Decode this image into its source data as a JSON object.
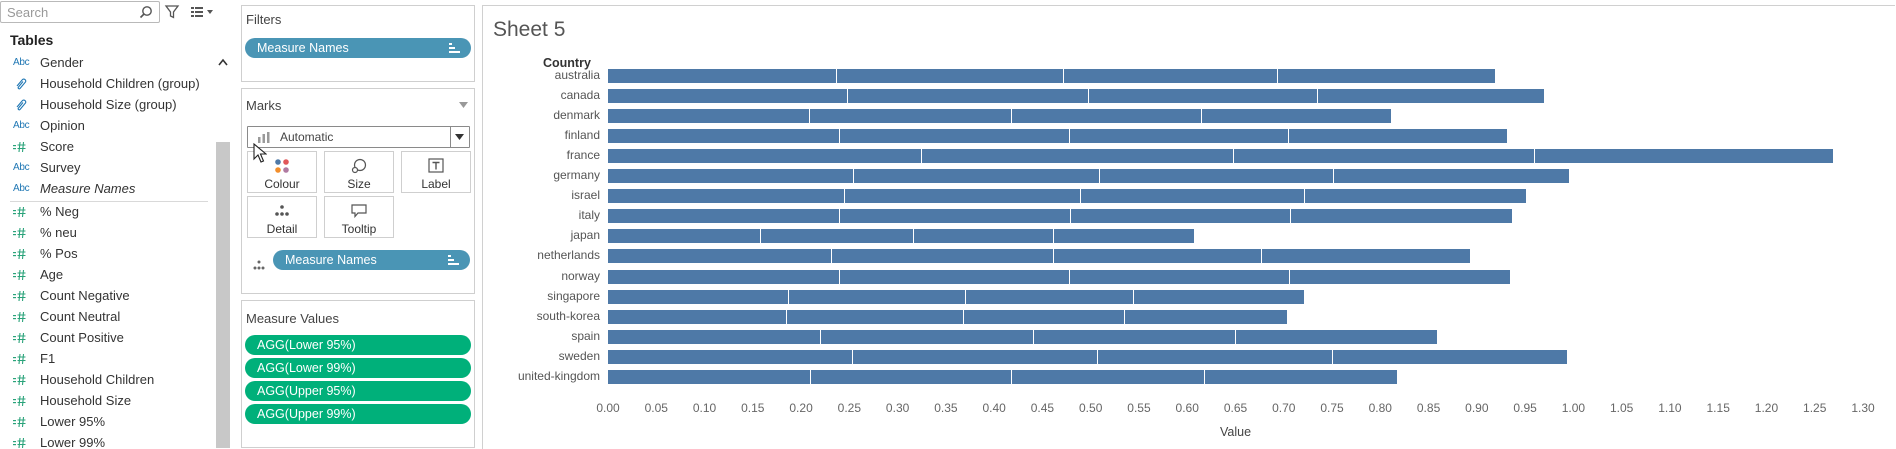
{
  "datapane": {
    "search_placeholder": "Search",
    "tables_title": "Tables",
    "fields": [
      {
        "type": "abc",
        "label": "Gender",
        "italic": false
      },
      {
        "type": "grp",
        "label": "Household Children (group)",
        "italic": false
      },
      {
        "type": "grp",
        "label": "Household Size (group)",
        "italic": false
      },
      {
        "type": "abc",
        "label": "Opinion",
        "italic": false
      },
      {
        "type": "num",
        "label": "Score",
        "italic": false
      },
      {
        "type": "abc",
        "label": "Survey",
        "italic": false
      },
      {
        "type": "abc",
        "label": "Measure Names",
        "italic": true
      },
      {
        "type": "num",
        "label": "% Neg",
        "italic": false
      },
      {
        "type": "num",
        "label": "% neu",
        "italic": false
      },
      {
        "type": "num",
        "label": "% Pos",
        "italic": false
      },
      {
        "type": "num",
        "label": "Age",
        "italic": false
      },
      {
        "type": "num",
        "label": "Count Negative",
        "italic": false
      },
      {
        "type": "num",
        "label": "Count Neutral",
        "italic": false
      },
      {
        "type": "num",
        "label": "Count Positive",
        "italic": false
      },
      {
        "type": "num",
        "label": "F1",
        "italic": false
      },
      {
        "type": "num",
        "label": "Household Children",
        "italic": false
      },
      {
        "type": "num",
        "label": "Household Size",
        "italic": false
      },
      {
        "type": "num",
        "label": "Lower 95%",
        "italic": false
      },
      {
        "type": "num",
        "label": "Lower 99%",
        "italic": false
      }
    ],
    "icon_glyphs": {
      "abc": "Abc",
      "num": "=#",
      "grp": "🔗"
    }
  },
  "filters": {
    "title": "Filters",
    "pill": "Measure Names"
  },
  "marks": {
    "title": "Marks",
    "mark_type": "Automatic",
    "buttons": [
      {
        "label": "Colour",
        "icon": "colour-icon"
      },
      {
        "label": "Size",
        "icon": "size-icon"
      },
      {
        "label": "Label",
        "icon": "label-icon"
      },
      {
        "label": "Detail",
        "icon": "detail-icon"
      },
      {
        "label": "Tooltip",
        "icon": "tooltip-icon"
      }
    ],
    "detail_pill": "Measure Names"
  },
  "measure_values": {
    "title": "Measure Values",
    "pills": [
      "AGG(Lower 95%)",
      "AGG(Lower 99%)",
      "AGG(Upper 95%)",
      "AGG(Upper 99%)"
    ]
  },
  "sheet": {
    "title": "Sheet 5"
  },
  "colors": {
    "bar": "#4e79a7",
    "pill_blue": "#4a95b5",
    "pill_green": "#00b07a"
  },
  "chart_data": {
    "type": "bar",
    "orientation": "horizontal",
    "stacked": true,
    "row_header": "Country",
    "xlabel": "Value",
    "xlim": [
      0,
      1.3
    ],
    "xticks": [
      "0.00",
      "0.05",
      "0.10",
      "0.15",
      "0.20",
      "0.25",
      "0.30",
      "0.35",
      "0.40",
      "0.45",
      "0.50",
      "0.55",
      "0.60",
      "0.65",
      "0.70",
      "0.75",
      "0.80",
      "0.85",
      "0.90",
      "0.95",
      "1.00",
      "1.05",
      "1.10",
      "1.15",
      "1.20",
      "1.25",
      "1.30"
    ],
    "categories": [
      "australia",
      "canada",
      "denmark",
      "finland",
      "france",
      "germany",
      "israel",
      "italy",
      "japan",
      "netherlands",
      "norway",
      "singapore",
      "south-korea",
      "spain",
      "sweden",
      "united-kingdom"
    ],
    "series": [
      {
        "name": "AGG(Lower 95%)",
        "values": [
          0.237,
          0.249,
          0.209,
          0.24,
          0.325,
          0.255,
          0.246,
          0.24,
          0.159,
          0.232,
          0.24,
          0.187,
          0.185,
          0.221,
          0.254,
          0.21
        ]
      },
      {
        "name": "AGG(Lower 99%)",
        "values": [
          0.235,
          0.249,
          0.209,
          0.239,
          0.323,
          0.255,
          0.244,
          0.24,
          0.158,
          0.23,
          0.239,
          0.184,
          0.184,
          0.22,
          0.254,
          0.209
        ]
      },
      {
        "name": "AGG(Upper 95%)",
        "values": [
          0.222,
          0.237,
          0.197,
          0.226,
          0.312,
          0.242,
          0.232,
          0.228,
          0.145,
          0.215,
          0.227,
          0.174,
          0.167,
          0.21,
          0.243,
          0.199
        ]
      },
      {
        "name": "AGG(Upper 99%)",
        "values": [
          0.226,
          0.236,
          0.197,
          0.227,
          0.31,
          0.244,
          0.23,
          0.229,
          0.146,
          0.217,
          0.229,
          0.177,
          0.168,
          0.209,
          0.243,
          0.2
        ]
      }
    ]
  }
}
